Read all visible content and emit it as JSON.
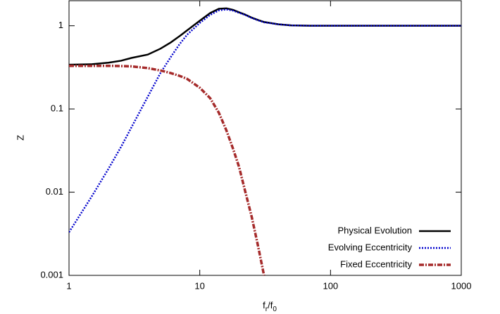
{
  "chart_data": {
    "type": "line",
    "xlabel": [
      "f",
      "r",
      "/f",
      "0"
    ],
    "ylabel": "Z",
    "x": [
      1,
      1.5,
      2,
      2.5,
      3,
      4,
      5,
      6,
      7,
      8,
      10,
      12,
      14,
      16,
      18,
      20,
      22,
      25,
      28,
      31,
      40,
      50,
      70,
      100,
      200,
      500,
      1000
    ],
    "series": [
      {
        "name": "Physical Evolution",
        "color": "#000000",
        "dash": "solid",
        "values": [
          0.34,
          0.345,
          0.36,
          0.38,
          0.41,
          0.45,
          0.53,
          0.63,
          0.75,
          0.88,
          1.15,
          1.42,
          1.6,
          1.62,
          1.55,
          1.45,
          1.37,
          1.25,
          1.17,
          1.11,
          1.04,
          1.01,
          1.0,
          1.0,
          1.0,
          1.0,
          1.0
        ]
      },
      {
        "name": "Evolving Eccentricity",
        "color": "#0000cc",
        "dash": "dotted",
        "values": [
          0.0033,
          0.009,
          0.019,
          0.035,
          0.06,
          0.14,
          0.27,
          0.42,
          0.6,
          0.78,
          1.08,
          1.35,
          1.53,
          1.57,
          1.52,
          1.43,
          1.36,
          1.24,
          1.16,
          1.1,
          1.04,
          1.01,
          1.0,
          1.0,
          1.0,
          1.0,
          1.0
        ]
      },
      {
        "name": "Fixed Eccentricity",
        "color": "#a52a2a",
        "dash": "dashdot",
        "values": [
          0.33,
          0.33,
          0.33,
          0.328,
          0.325,
          0.31,
          0.29,
          0.27,
          0.25,
          0.23,
          0.18,
          0.135,
          0.09,
          0.055,
          0.033,
          0.02,
          0.011,
          0.005,
          0.0022,
          0.001,
          null,
          null,
          null,
          null,
          null,
          null,
          null
        ]
      }
    ],
    "xscale": "log",
    "yscale": "log",
    "xlim": [
      1,
      1000
    ],
    "ylim": [
      0.001,
      2
    ],
    "xticks": [
      1,
      10,
      100,
      1000
    ],
    "yticks": [
      0.001,
      0.01,
      0.1,
      1
    ],
    "legend": "lower right"
  }
}
